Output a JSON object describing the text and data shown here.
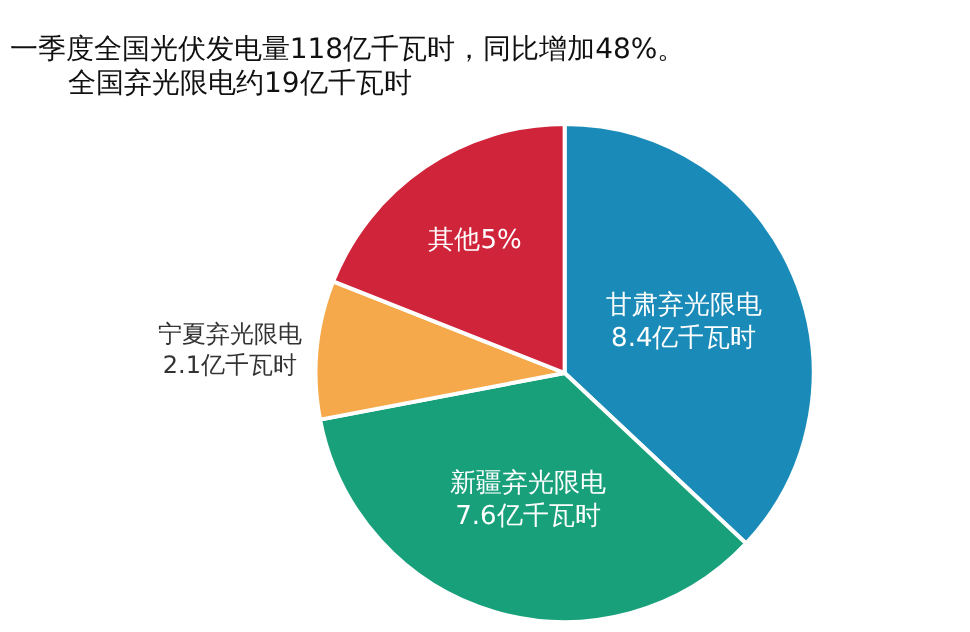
{
  "chart_data": {
    "type": "pie",
    "title": "一季度全国光伏发电量118亿千瓦时，同比增加48%。",
    "subtitle": "全国弃光限电约19亿千瓦时",
    "categories": [
      "甘肃弃光限电\n8.4亿千瓦时",
      "新疆弃光限电\n7.6亿千瓦时",
      "宁夏弃光限电\n2.1亿千瓦时",
      "其他5%"
    ],
    "values": [
      37,
      35,
      9,
      19
    ],
    "colors": [
      "#1a8bb8",
      "#18a07a",
      "#f5a94a",
      "#d0243a"
    ]
  }
}
